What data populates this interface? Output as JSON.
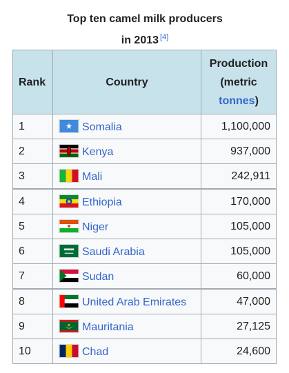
{
  "caption": {
    "line1": "Top ten camel milk producers",
    "line2": "in 2013",
    "ref": "[4]"
  },
  "headers": {
    "rank": "Rank",
    "country": "Country",
    "production_line1": "Production",
    "production_line2": "(metric",
    "production_unit": "tonnes",
    "production_close": ")"
  },
  "rows": [
    {
      "rank": "1",
      "country": "Somalia",
      "production": "1,100,000",
      "flag": "somalia-flag-icon",
      "link": true
    },
    {
      "rank": "2",
      "country": "Kenya",
      "production": "937,000",
      "flag": "kenya-flag-icon",
      "link": false
    },
    {
      "rank": "3",
      "country": "Mali",
      "production": "242,911",
      "flag": "mali-flag-icon",
      "link": true
    },
    {
      "rank": "4",
      "country": "Ethiopia",
      "production": "170,000",
      "flag": "ethiopia-flag-icon",
      "link": false
    },
    {
      "rank": "5",
      "country": "Niger",
      "production": "105,000",
      "flag": "niger-flag-icon",
      "link": true
    },
    {
      "rank": "6",
      "country": "Saudi Arabia",
      "production": "105,000",
      "flag": "saudi-arabia-flag-icon",
      "link": false
    },
    {
      "rank": "7",
      "country": "Sudan",
      "production": "60,000",
      "flag": "sudan-flag-icon",
      "link": false
    },
    {
      "rank": "8",
      "country": "United Arab Emirates",
      "production": "47,000",
      "flag": "uae-flag-icon",
      "link": false
    },
    {
      "rank": "9",
      "country": "Mauritania",
      "production": "27,125",
      "flag": "mauritania-flag-icon",
      "link": false
    },
    {
      "rank": "10",
      "country": "Chad",
      "production": "24,600",
      "flag": "chad-flag-icon",
      "link": true
    }
  ]
}
